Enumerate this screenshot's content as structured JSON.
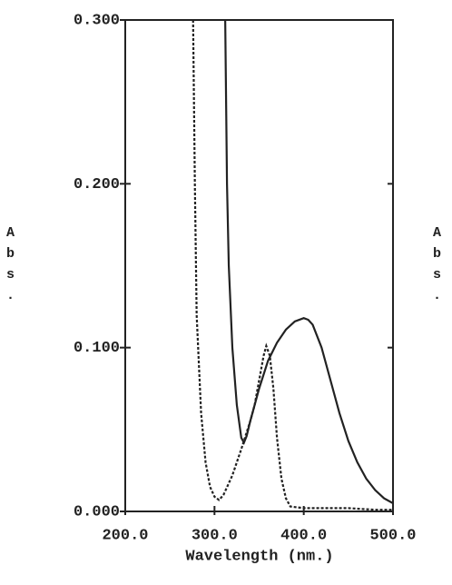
{
  "chart_data": {
    "type": "line",
    "y_label": "Abs.",
    "x_label": "Wavelength (nm.)",
    "xlim": [
      200,
      500
    ],
    "xticks": [
      {
        "value": 200,
        "label": "200.0"
      },
      {
        "value": 300,
        "label": "300.0"
      },
      {
        "value": 400,
        "label": "400.0"
      },
      {
        "value": 500,
        "label": "500.0"
      }
    ],
    "ylim": [
      0,
      0.3
    ],
    "yticks": [
      {
        "value": 0,
        "label": "0.000"
      },
      {
        "value": 0.1,
        "label": "0.100"
      },
      {
        "value": 0.2,
        "label": "0.200"
      },
      {
        "value": 0.3,
        "label": "0.300"
      }
    ],
    "series": [
      {
        "color": "#222222",
        "dashed": true,
        "x": [
          276,
          278,
          280,
          285,
          290,
          295,
          300,
          305,
          310,
          320,
          330,
          340,
          345,
          350,
          355,
          358,
          362,
          366,
          370,
          375,
          380,
          385,
          400,
          420,
          450,
          480,
          500
        ],
        "values": [
          0.3,
          0.2,
          0.12,
          0.06,
          0.03,
          0.015,
          0.009,
          0.007,
          0.01,
          0.022,
          0.038,
          0.055,
          0.065,
          0.08,
          0.095,
          0.101,
          0.095,
          0.075,
          0.045,
          0.02,
          0.008,
          0.003,
          0.002,
          0.002,
          0.002,
          0.001,
          0.001
        ]
      },
      {
        "color": "#222222",
        "dashed": false,
        "x": [
          312,
          314,
          316,
          320,
          325,
          330,
          333,
          336,
          340,
          350,
          360,
          370,
          380,
          390,
          400,
          405,
          410,
          420,
          430,
          440,
          450,
          460,
          470,
          480,
          490,
          500
        ],
        "values": [
          0.3,
          0.2,
          0.15,
          0.1,
          0.065,
          0.045,
          0.042,
          0.046,
          0.055,
          0.075,
          0.092,
          0.103,
          0.111,
          0.116,
          0.118,
          0.117,
          0.114,
          0.1,
          0.08,
          0.06,
          0.043,
          0.03,
          0.02,
          0.013,
          0.008,
          0.005
        ]
      }
    ]
  }
}
